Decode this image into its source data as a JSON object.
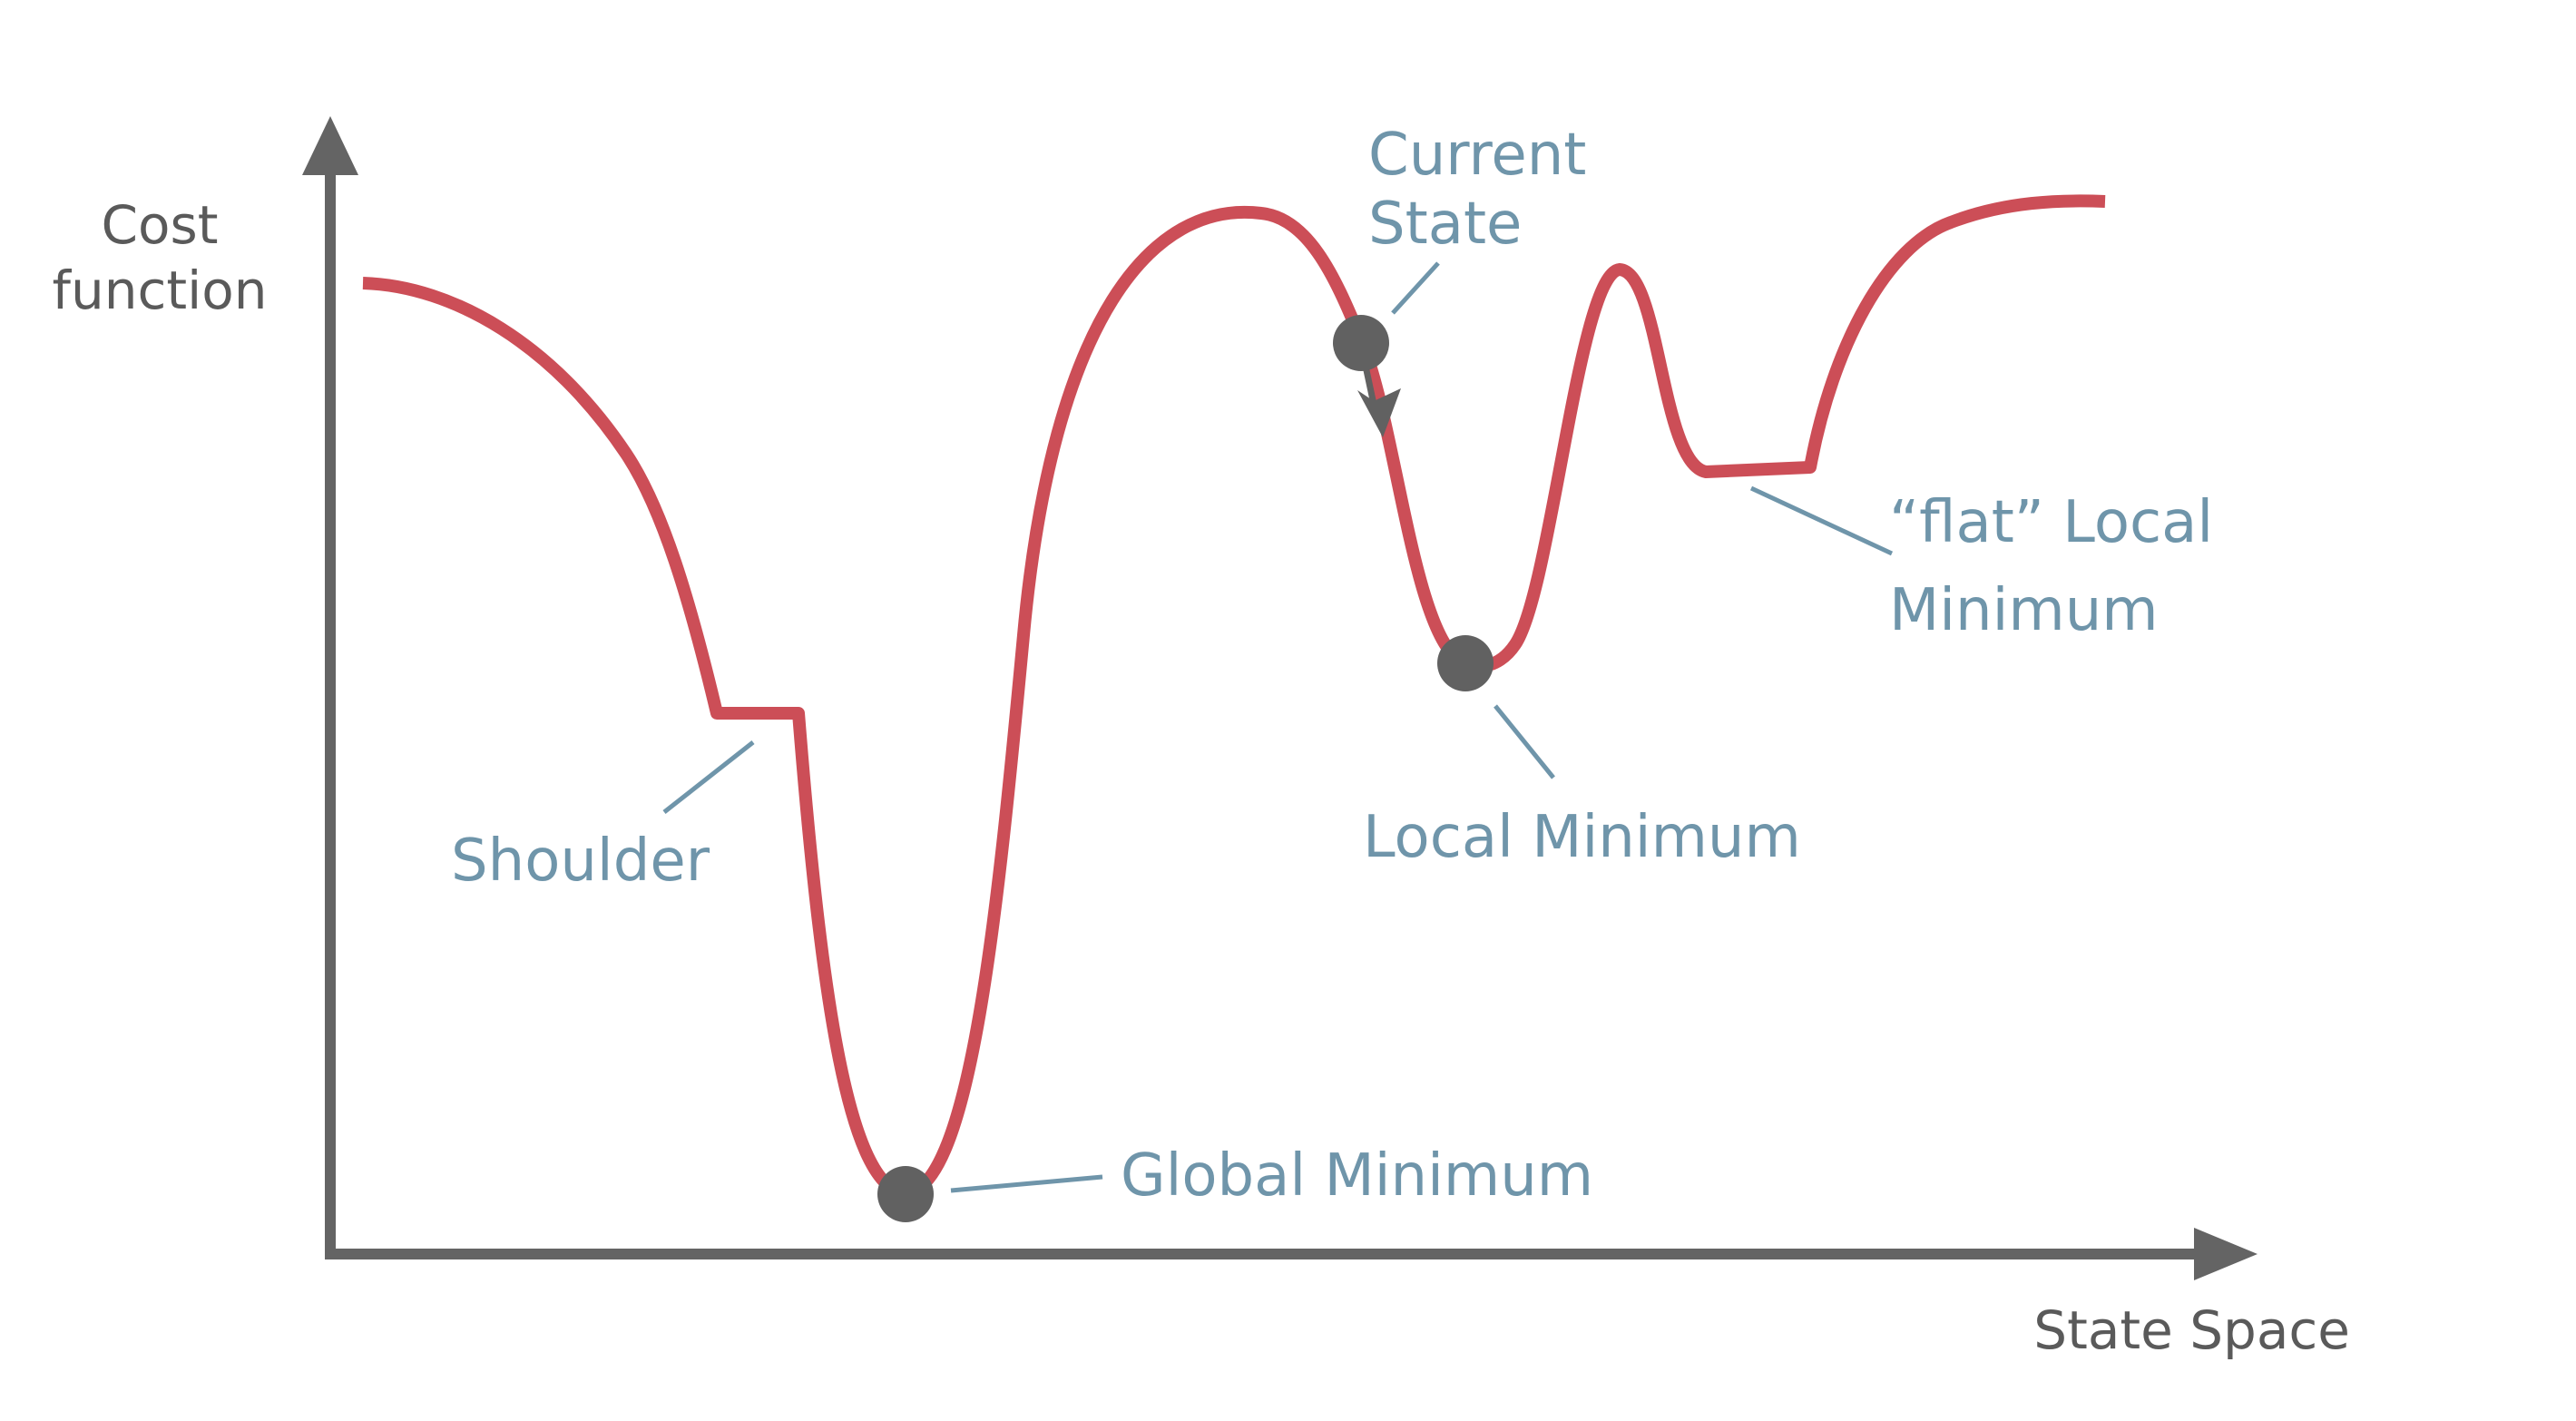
{
  "axes": {
    "y_label_line1": "Cost",
    "y_label_line2": "function",
    "x_label": "State Space"
  },
  "labels": {
    "current_state_line1": "Current",
    "current_state_line2": "State",
    "flat_local_line1": "“flat” Local",
    "flat_local_line2": "Minimum",
    "shoulder": "Shoulder",
    "local_minimum": "Local Minimum",
    "global_minimum": "Global Minimum"
  },
  "colors": {
    "axis": "#646464",
    "curve": "#cc4e57",
    "label": "#6f95aa",
    "marker": "#616161"
  }
}
